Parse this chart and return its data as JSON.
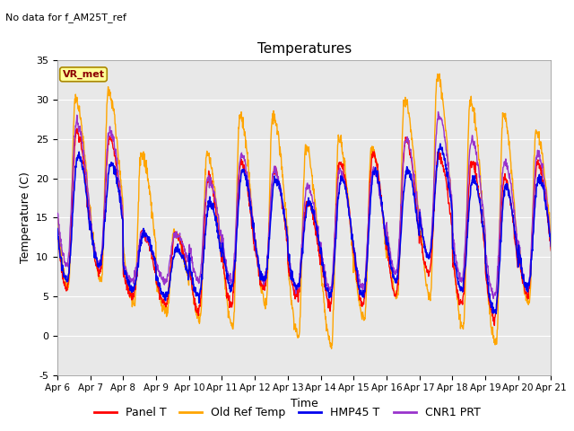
{
  "title": "Temperatures",
  "xlabel": "Time",
  "ylabel": "Temperature (C)",
  "annotation_text": "No data for f_AM25T_ref",
  "legend_label_text": "VR_met",
  "ylim": [
    -5,
    35
  ],
  "series": {
    "Panel T": {
      "color": "#FF0000",
      "lw": 1.0
    },
    "Old Ref Temp": {
      "color": "#FFA500",
      "lw": 1.0
    },
    "HMP45 T": {
      "color": "#0000EE",
      "lw": 1.2
    },
    "CNR1 PRT": {
      "color": "#9933CC",
      "lw": 1.0
    }
  },
  "xtick_labels": [
    "Apr 6",
    "Apr 7",
    "Apr 8",
    "Apr 9",
    "Apr 10",
    "Apr 11",
    "Apr 12",
    "Apr 13",
    "Apr 14",
    "Apr 15",
    "Apr 16",
    "Apr 17",
    "Apr 18",
    "Apr 19",
    "Apr 20",
    "Apr 21"
  ],
  "ytick_labels": [
    "-5",
    "0",
    "5",
    "10",
    "15",
    "20",
    "25",
    "30",
    "35"
  ],
  "ytick_vals": [
    -5,
    0,
    5,
    10,
    15,
    20,
    25,
    30,
    35
  ],
  "background_color": "#E8E8E8",
  "grid_color": "#FFFFFF",
  "fig_bg": "#FFFFFF"
}
